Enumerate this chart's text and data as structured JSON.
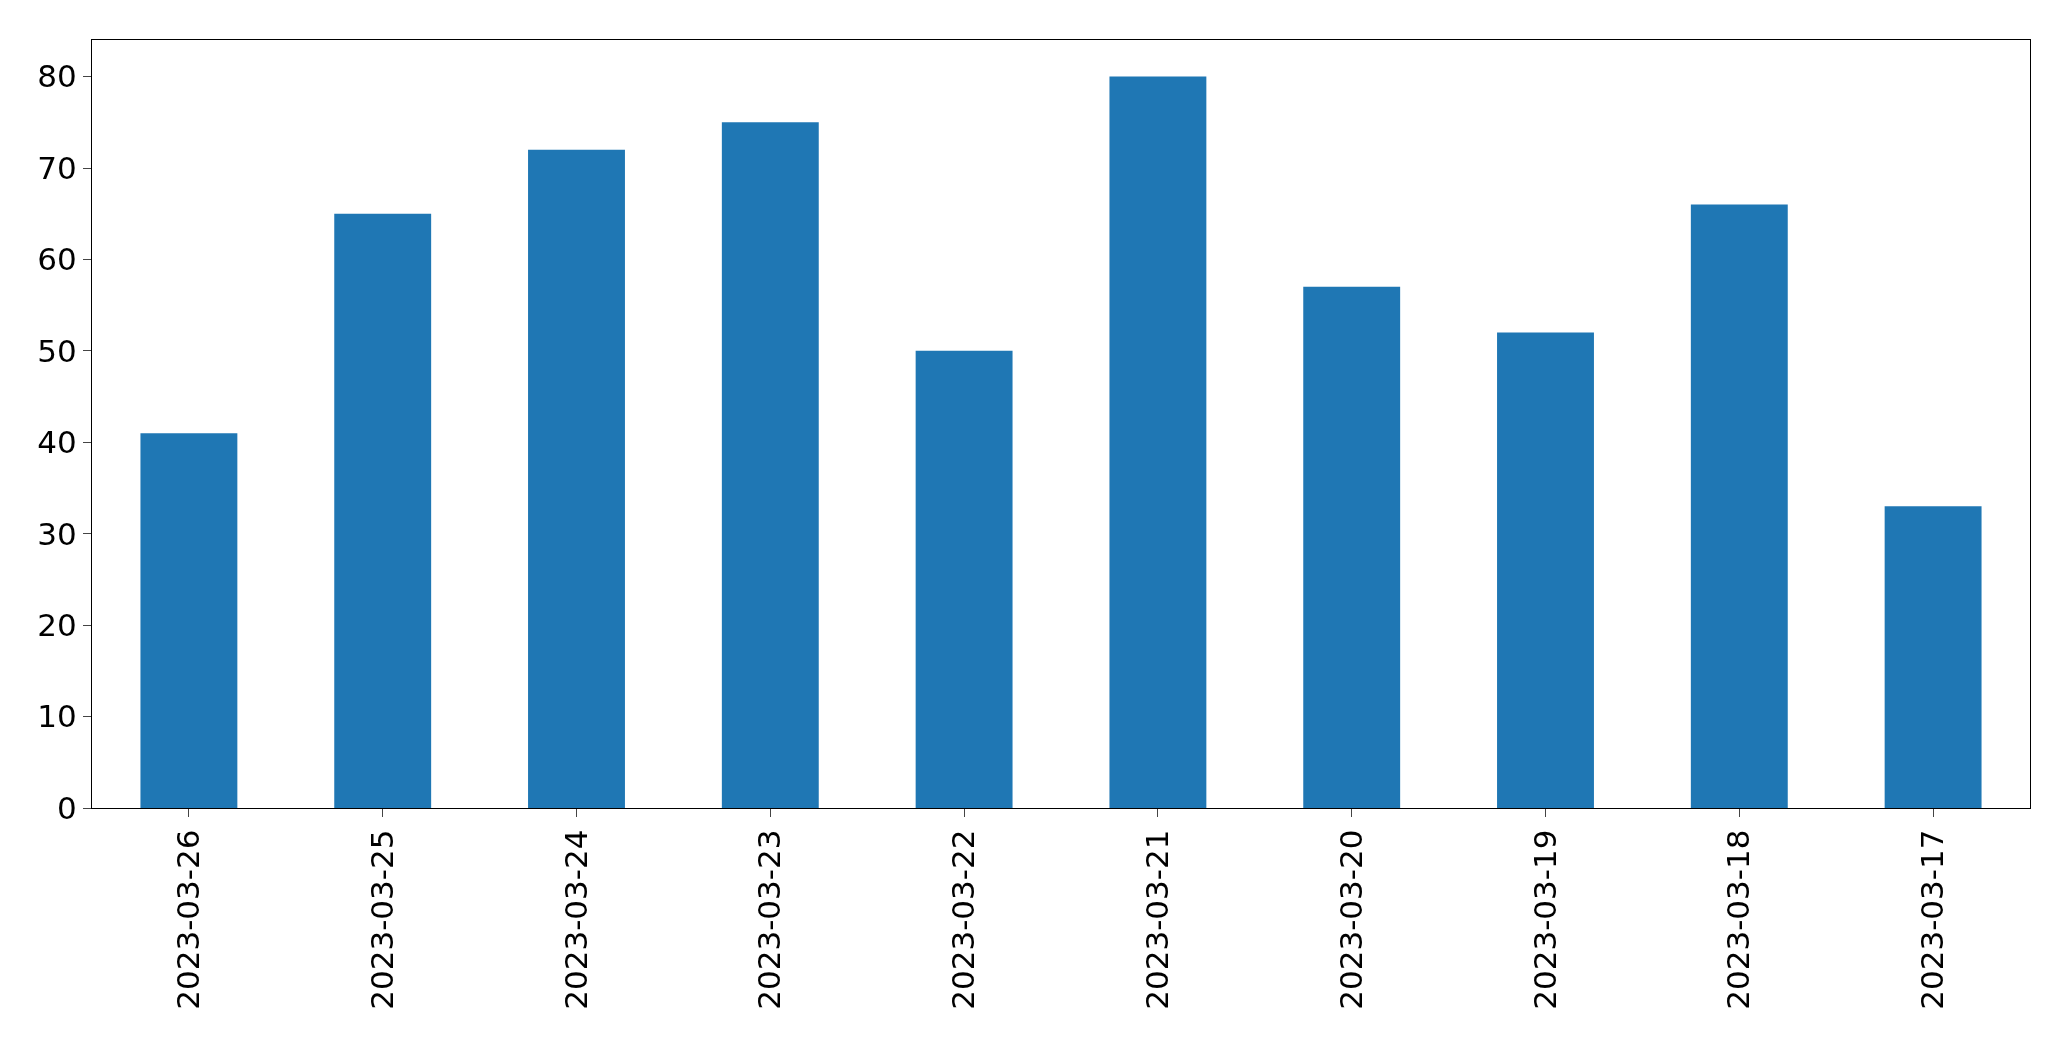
{
  "chart_data": {
    "type": "bar",
    "categories": [
      "2023-03-26",
      "2023-03-25",
      "2023-03-24",
      "2023-03-23",
      "2023-03-22",
      "2023-03-21",
      "2023-03-20",
      "2023-03-19",
      "2023-03-18",
      "2023-03-17"
    ],
    "values": [
      41,
      65,
      72,
      75,
      50,
      80,
      57,
      52,
      66,
      33
    ],
    "color": "#1f77b4",
    "ylim": [
      0,
      84
    ],
    "yticks": [
      0,
      10,
      20,
      30,
      40,
      50,
      60,
      70,
      80
    ]
  }
}
